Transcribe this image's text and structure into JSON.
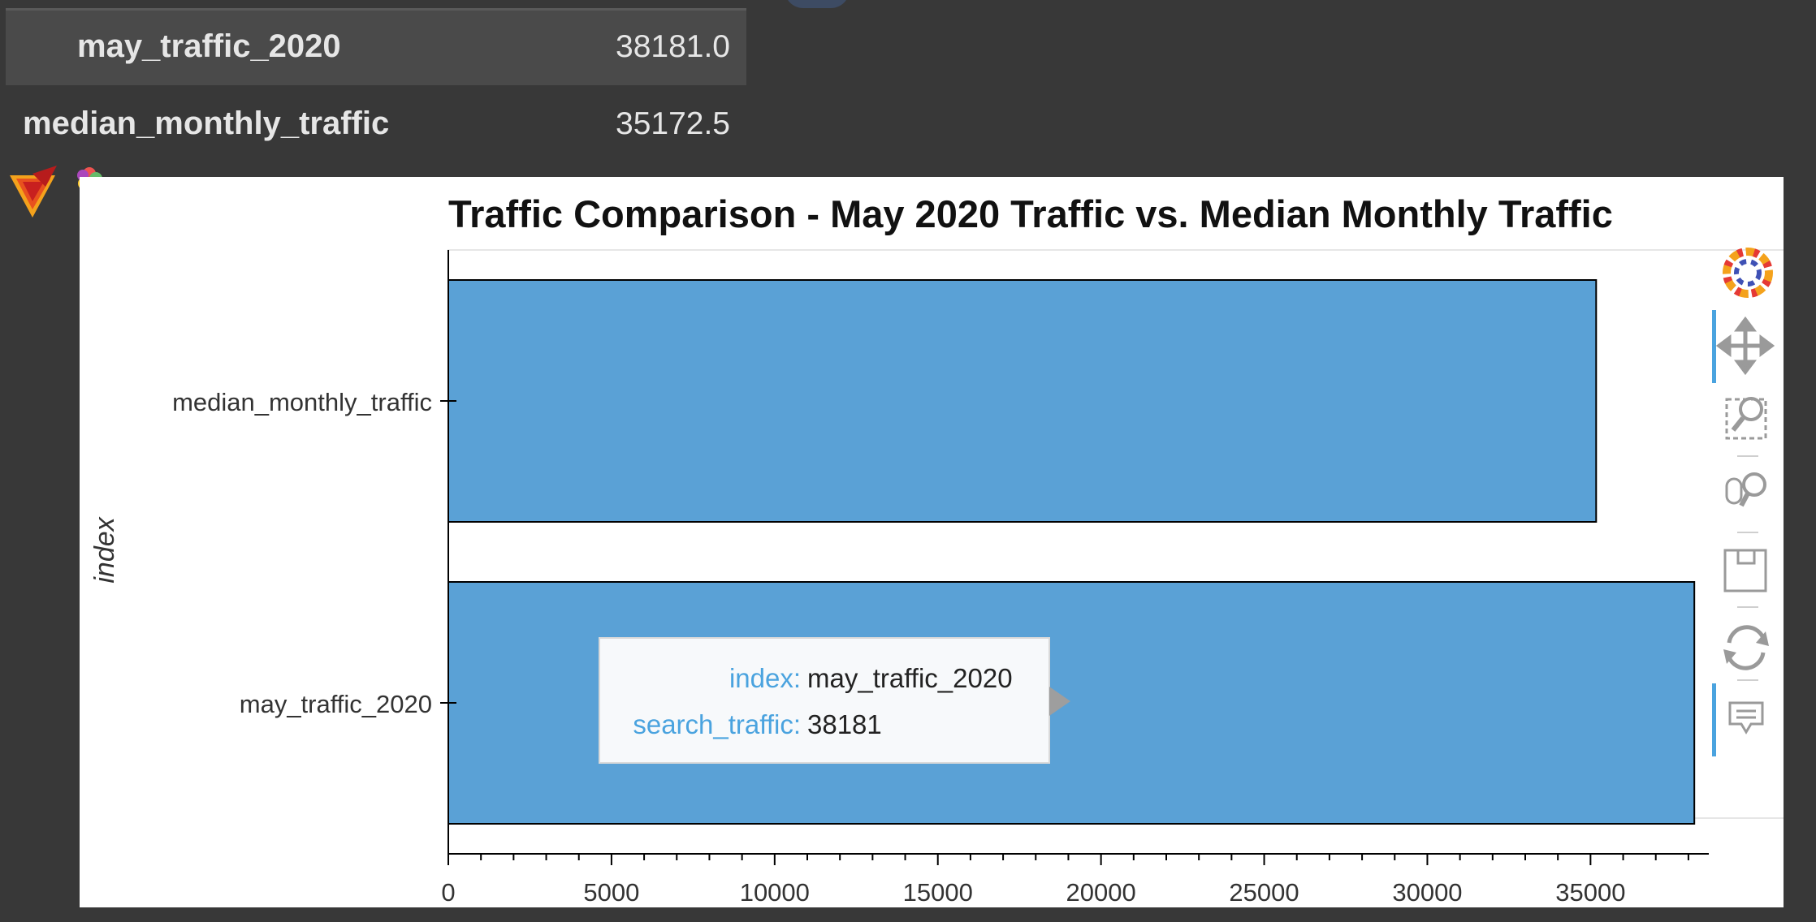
{
  "summary_table": {
    "rows": [
      {
        "key": "may_traffic_2020",
        "value": "38181.0"
      },
      {
        "key": "median_monthly_traffic",
        "value": "35172.5"
      }
    ]
  },
  "chart_data": {
    "type": "bar",
    "orientation": "horizontal",
    "title": "Traffic Comparison - May 2020 Traffic vs. Median Monthly Traffic",
    "ylabel": "index",
    "xlabel": "",
    "categories": [
      "median_monthly_traffic",
      "may_traffic_2020"
    ],
    "values": [
      35172.5,
      38181
    ],
    "xlim": [
      0,
      38500
    ],
    "xticks": [
      "0",
      "5000",
      "10000",
      "15000",
      "20000",
      "25000",
      "30000",
      "35000"
    ],
    "bar_color": "#5aa1d6",
    "grid": false
  },
  "tooltip": {
    "index_label": "index:",
    "index_value": "may_traffic_2020",
    "value_label": "search_traffic:",
    "value_value": "38181"
  },
  "toolbar": {
    "tools": [
      "pan",
      "box_zoom",
      "wheel_zoom",
      "save",
      "reset",
      "hover"
    ]
  },
  "colors": {
    "accent": "#4aa3df",
    "bar": "#5aa1d6",
    "notebook_bg": "#383838"
  }
}
